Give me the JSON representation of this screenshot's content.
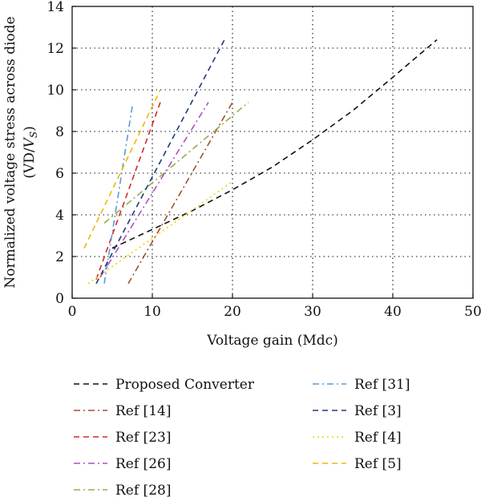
{
  "chart_data": {
    "type": "line",
    "title": "",
    "xlabel": "Voltage gain (Mdc)",
    "ylabel_line1": "Normalized voltage stress across diode",
    "ylabel_line2_prefix": "(VD/",
    "ylabel_line2_var": "V",
    "ylabel_line2_sub": "S",
    "ylabel_line2_suffix": ")",
    "xlim": [
      0,
      50
    ],
    "ylim": [
      0,
      14
    ],
    "xticks": [
      0,
      10,
      20,
      30,
      40,
      50
    ],
    "yticks": [
      0,
      2,
      4,
      6,
      8,
      10,
      12,
      14
    ],
    "grid": true,
    "legend_position": "below",
    "series": [
      {
        "name": "Proposed Converter",
        "color": "#111111",
        "dash": "dash",
        "x": [
          5,
          10,
          15,
          20,
          25,
          30,
          35,
          40,
          45.5
        ],
        "y": [
          2.4,
          3.3,
          4.2,
          5.2,
          6.3,
          7.6,
          9.0,
          10.6,
          12.4
        ]
      },
      {
        "name": "Ref [14]",
        "color": "#a0522d",
        "dash": "dashdot",
        "x": [
          7,
          20
        ],
        "y": [
          0.7,
          9.4
        ]
      },
      {
        "name": "Ref [23]",
        "color": "#d62728",
        "dash": "dash",
        "x": [
          3,
          11
        ],
        "y": [
          0.9,
          9.4
        ]
      },
      {
        "name": "Ref [26]",
        "color": "#b04fc4",
        "dash": "dashdot",
        "x": [
          3.5,
          17
        ],
        "y": [
          1.0,
          9.4
        ]
      },
      {
        "name": "Ref [28]",
        "color": "#9aab4c",
        "dash": "dashdot",
        "x": [
          4,
          22
        ],
        "y": [
          3.6,
          9.4
        ]
      },
      {
        "name": "Ref [31]",
        "color": "#5b9bd5",
        "dash": "dashdot",
        "x": [
          4,
          7.5
        ],
        "y": [
          0.7,
          9.2
        ]
      },
      {
        "name": "Ref  [3]",
        "color": "#1f3a7a",
        "dash": "dash",
        "x": [
          3,
          19
        ],
        "y": [
          0.7,
          12.4
        ]
      },
      {
        "name": "Ref [4]",
        "color": "#f5d300",
        "dash": "dot",
        "x": [
          2,
          20
        ],
        "y": [
          0.7,
          5.6
        ]
      },
      {
        "name": "Ref [5]",
        "color": "#f2b705",
        "dash": "dash",
        "x": [
          1.5,
          11
        ],
        "y": [
          2.4,
          10.0
        ]
      }
    ]
  }
}
